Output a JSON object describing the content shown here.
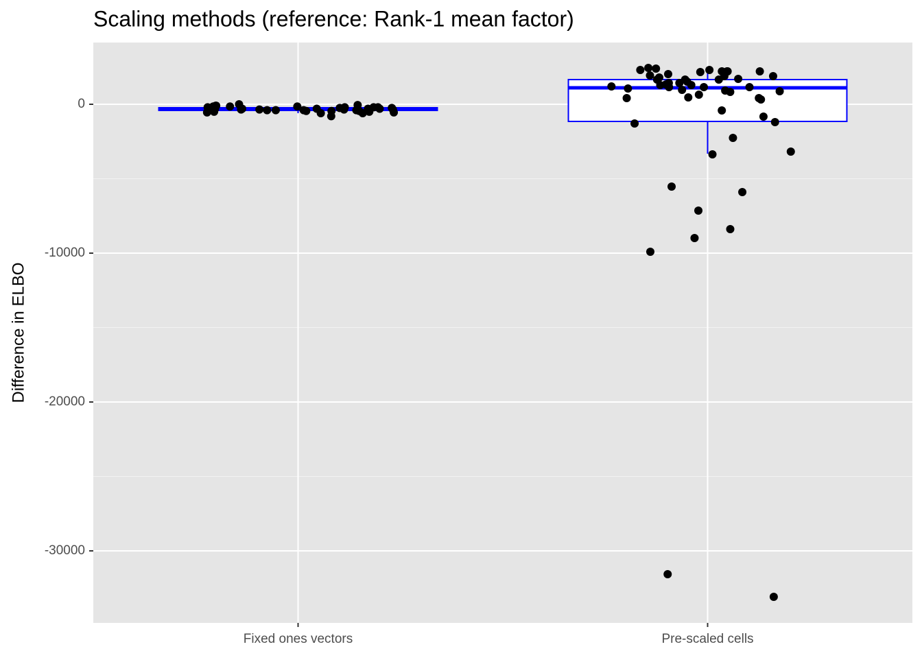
{
  "chart_data": {
    "type": "box",
    "title": "Scaling methods (reference: Rank-1 mean factor)",
    "y_label": "Difference in ELBO",
    "categories": [
      "Fixed ones vectors",
      "Pre-scaled cells"
    ],
    "boxes": [
      {
        "min": -600,
        "q1": -414,
        "median": -330,
        "q3": -230,
        "max": -50
      },
      {
        "min": -3318,
        "q1": -1152,
        "median": 1106,
        "q3": 1659,
        "max": 2396
      }
    ],
    "points": [
      [
        -300,
        -350,
        -450,
        -250,
        -800,
        -400,
        -500,
        -200,
        -100,
        -550,
        -300,
        0,
        -350,
        -150,
        -400,
        -200,
        -100,
        -450,
        -300,
        -50,
        -250,
        -500,
        -600,
        -150,
        -350,
        -200,
        -300,
        -400,
        -150,
        -550,
        -250,
        -350,
        -300,
        -450,
        -600,
        -200,
        -350,
        -400
      ],
      [
        2304,
        1705,
        1659,
        1152,
        -829,
        -5530,
        876,
        1659,
        1935,
        2166,
        2212,
        1290,
        1429,
        1889,
        2212,
        1429,
        1152,
        1889,
        461,
        -415,
        1659,
        1060,
        922,
        -3364,
        645,
        2028,
        -7143,
        415,
        2212,
        -9908,
        -1290,
        -1198,
        2212,
        -8387,
        -3180,
        1797,
        1152,
        1521,
        -2258,
        -5899,
        2396,
        2442,
        829,
        1198,
        1336,
        323,
        415,
        -8986,
        968,
        2304,
        1290,
        -31567,
        -33088
      ]
    ],
    "box_color": "#0000ff",
    "point_color": "#000000",
    "ylim": [
      -34839,
      4147
    ],
    "yticks": [
      0,
      -10000,
      -20000,
      -30000
    ],
    "yminorticks": [
      -5000,
      -15000,
      -25000
    ],
    "grid": true
  }
}
